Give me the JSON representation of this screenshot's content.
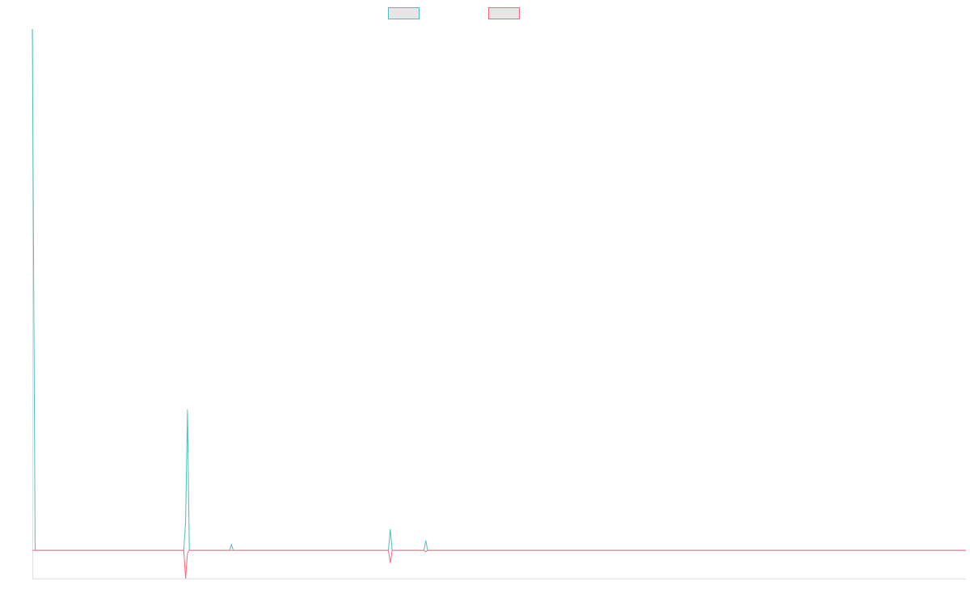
{
  "chart_data": {
    "type": "line",
    "title": "",
    "xlabel": "",
    "ylabel": "",
    "legend_position": "top",
    "grid": false,
    "x_count": 1000,
    "ylim": [
      -100,
      1850
    ],
    "series": [
      {
        "name": "",
        "color": "#4bc0c0",
        "fill": "#e6e6e6",
        "points": [
          [
            0,
            1850
          ],
          [
            3,
            0
          ],
          [
            162,
            0
          ],
          [
            164,
            100
          ],
          [
            166,
            500
          ],
          [
            168,
            0
          ],
          [
            211,
            0
          ],
          [
            213,
            20
          ],
          [
            215,
            0
          ],
          [
            381,
            0
          ],
          [
            383,
            75
          ],
          [
            385,
            0
          ],
          [
            419,
            0
          ],
          [
            421,
            35
          ],
          [
            423,
            0
          ],
          [
            999,
            0
          ]
        ]
      },
      {
        "name": "",
        "color": "#ff6384",
        "fill": "#e6e6e6",
        "points": [
          [
            0,
            0
          ],
          [
            162,
            0
          ],
          [
            164,
            -100
          ],
          [
            166,
            -10
          ],
          [
            168,
            0
          ],
          [
            381,
            0
          ],
          [
            383,
            -45
          ],
          [
            385,
            0
          ],
          [
            419,
            0
          ],
          [
            421,
            -5
          ],
          [
            423,
            0
          ],
          [
            999,
            0
          ]
        ]
      }
    ]
  }
}
